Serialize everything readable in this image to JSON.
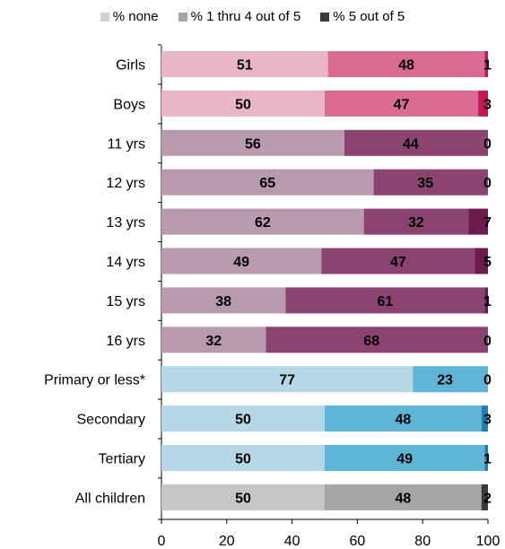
{
  "chart_data": {
    "type": "bar",
    "orientation": "horizontal",
    "stacked": true,
    "categories": [
      "Girls",
      "Boys",
      "11 yrs",
      "12 yrs",
      "13 yrs",
      "14 yrs",
      "15 yrs",
      "16 yrs",
      "Primary or less*",
      "Secondary",
      "Tertiary",
      "All children"
    ],
    "series": [
      {
        "name": "% none",
        "values": [
          51,
          50,
          56,
          65,
          62,
          49,
          38,
          32,
          77,
          50,
          50,
          50
        ]
      },
      {
        "name": "% 1 thru 4 out of 5",
        "values": [
          48,
          47,
          44,
          35,
          32,
          47,
          61,
          68,
          23,
          48,
          49,
          48
        ]
      },
      {
        "name": "% 5 out of 5",
        "values": [
          1,
          3,
          0,
          0,
          7,
          5,
          1,
          0,
          0,
          3,
          1,
          2
        ]
      }
    ],
    "xlim": [
      0,
      100
    ],
    "xticks": [
      "0",
      "20",
      "40",
      "60",
      "80",
      "100"
    ],
    "legend_position": "top-center",
    "colors": {
      "gender": [
        "#e8b6c8",
        "#d96b93",
        "#c2185b"
      ],
      "age": [
        "#b89aae",
        "#8b4470",
        "#6b1a4e"
      ],
      "education": [
        "#b6d8e6",
        "#5fb5d6",
        "#1f7fb3"
      ],
      "all": [
        "#c6c6c6",
        "#a6a6a6",
        "#3a3a3a"
      ],
      "legend": [
        "#d0d0d0",
        "#a6a6a6",
        "#3a3a3a"
      ]
    }
  }
}
